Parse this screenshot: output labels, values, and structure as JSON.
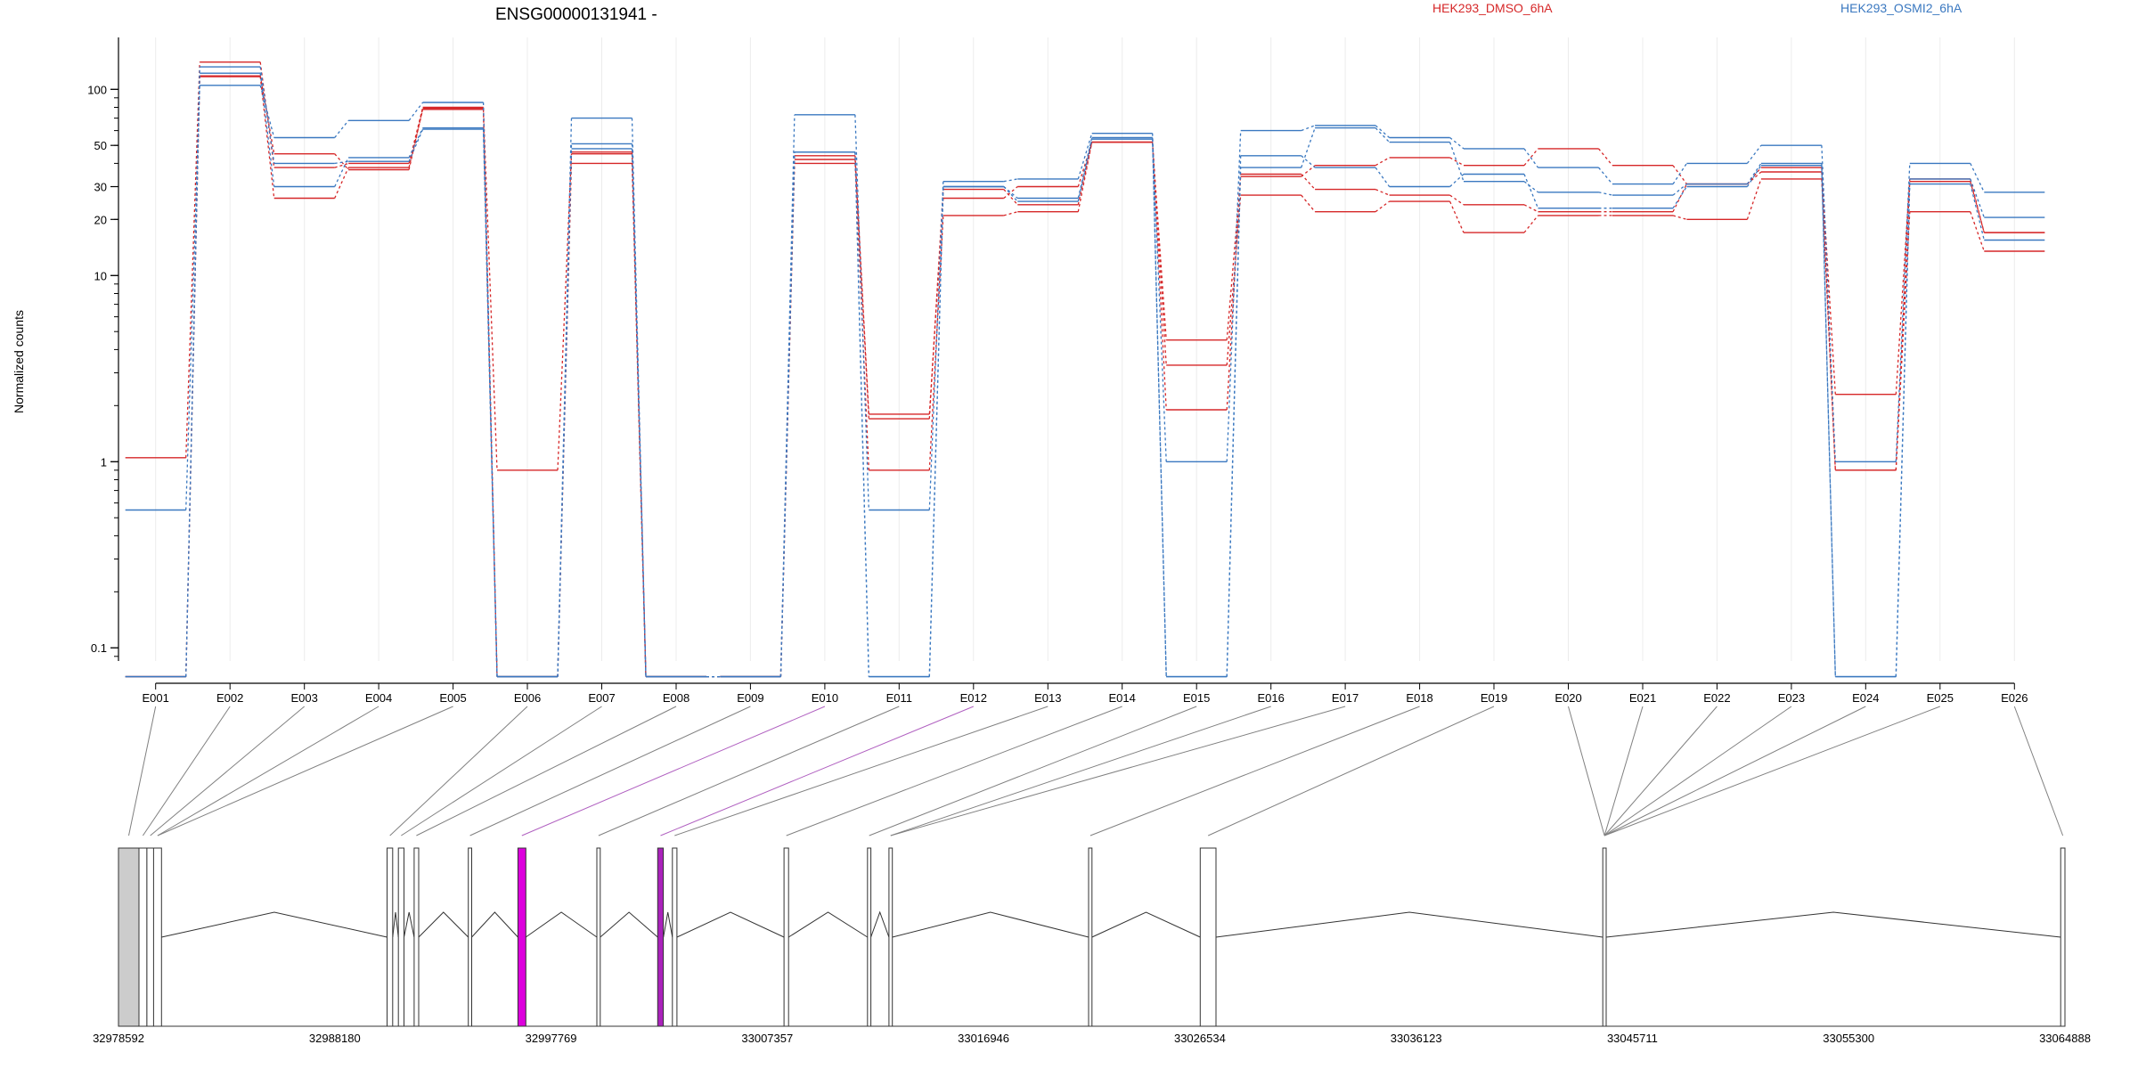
{
  "chart_data": {
    "type": "line",
    "title": "ENSG00000131941 -",
    "ylabel": "Normalized counts",
    "yscale": "log",
    "yticks": [
      "0.1",
      "1",
      "10",
      "20",
      "30",
      "50",
      "100"
    ],
    "ylim": [
      0.085,
      190
    ],
    "grid": "vertical",
    "legend": [
      {
        "label": "HEK293_DMSO_6hA",
        "color": "#d62728"
      },
      {
        "label": "HEK293_OSMI2_6hA",
        "color": "#3a78c0"
      }
    ],
    "categories": [
      "E001",
      "E002",
      "E003",
      "E004",
      "E005",
      "E006",
      "E007",
      "E008",
      "E009",
      "E010",
      "E011",
      "E012",
      "E013",
      "E014",
      "E015",
      "E016",
      "E017",
      "E018",
      "E019",
      "E020",
      "E021",
      "E022",
      "E023",
      "E024",
      "E025",
      "E026"
    ],
    "series": [
      {
        "group": "HEK293_DMSO_6hA",
        "color": "#d62728",
        "values": [
          1.05,
          140,
          38,
          40,
          80,
          0.9,
          45,
          0.07,
          0.07,
          44,
          1.8,
          26,
          30,
          52,
          4.5,
          34,
          39,
          43,
          39,
          48,
          39,
          31,
          38,
          2.3,
          33,
          17
        ]
      },
      {
        "group": "HEK293_DMSO_6hA",
        "color": "#d62728",
        "values": [
          0.07,
          118,
          45,
          37,
          79,
          0.07,
          40,
          0.07,
          0.07,
          40,
          0.9,
          21,
          22,
          52,
          3.3,
          27,
          22,
          25,
          17,
          21,
          21,
          20,
          33,
          0.9,
          22,
          13.5
        ]
      },
      {
        "group": "HEK293_DMSO_6hA",
        "color": "#d62728",
        "values": [
          0.07,
          117,
          26,
          38,
          78,
          0.07,
          46,
          0.07,
          0.07,
          42,
          1.7,
          29,
          24,
          52,
          1.9,
          35,
          29,
          27,
          24,
          22,
          22,
          31,
          36,
          0.9,
          32,
          17
        ]
      },
      {
        "group": "HEK293_OSMI2_6hA",
        "color": "#3a78c0",
        "values": [
          0.55,
          105,
          55,
          68,
          85,
          0.07,
          70,
          0.07,
          0.07,
          73,
          0.55,
          32,
          33,
          58,
          1.0,
          60,
          64,
          55,
          48,
          38,
          31,
          40,
          50,
          1.0,
          40,
          28
        ]
      },
      {
        "group": "HEK293_OSMI2_6hA",
        "color": "#3a78c0",
        "values": [
          0.07,
          122,
          30,
          43,
          62,
          0.07,
          51,
          0.07,
          0.07,
          46,
          0.07,
          30,
          26,
          55,
          0.07,
          38,
          62,
          52,
          32,
          28,
          27,
          31,
          40,
          0.07,
          33,
          20.5
        ]
      },
      {
        "group": "HEK293_OSMI2_6hA",
        "color": "#3a78c0",
        "values": [
          0.07,
          132,
          40,
          41,
          61,
          0.07,
          48,
          0.07,
          0.07,
          46,
          0.07,
          30,
          25,
          54,
          0.07,
          44,
          38,
          30,
          35,
          23,
          23,
          30,
          39,
          0.07,
          31,
          15.5
        ]
      }
    ],
    "genomic_axis": {
      "ticks": [
        "32978592",
        "32988180",
        "32997769",
        "33007357",
        "33016946",
        "33026534",
        "33036123",
        "33045711",
        "33055300",
        "33064888"
      ],
      "start": 32978592,
      "end": 33064888,
      "exons": [
        {
          "start": 32978592,
          "end": 32979500,
          "color": "#cccccc"
        },
        {
          "start": 32979500,
          "end": 32979850,
          "color": "#ffffff"
        },
        {
          "start": 32979850,
          "end": 32980150,
          "color": "#ffffff"
        },
        {
          "start": 32980150,
          "end": 32980500,
          "color": "#ffffff"
        },
        {
          "start": 32990500,
          "end": 32990750,
          "color": "#ffffff"
        },
        {
          "start": 32991000,
          "end": 32991250,
          "color": "#ffffff"
        },
        {
          "start": 32991700,
          "end": 32991900,
          "color": "#ffffff"
        },
        {
          "start": 32994100,
          "end": 32994250,
          "color": "#ffffff"
        },
        {
          "start": 32996300,
          "end": 32996650,
          "color": "#dd00dd"
        },
        {
          "start": 32999800,
          "end": 32999950,
          "color": "#ffffff"
        },
        {
          "start": 33002500,
          "end": 33002750,
          "color": "#aa22bb"
        },
        {
          "start": 33003150,
          "end": 33003350,
          "color": "#ffffff"
        },
        {
          "start": 33008100,
          "end": 33008300,
          "color": "#ffffff"
        },
        {
          "start": 33011800,
          "end": 33011950,
          "color": "#ffffff"
        },
        {
          "start": 33012750,
          "end": 33012900,
          "color": "#ffffff"
        },
        {
          "start": 33021600,
          "end": 33021750,
          "color": "#ffffff"
        },
        {
          "start": 33026550,
          "end": 33027250,
          "color": "#ffffff"
        },
        {
          "start": 33044400,
          "end": 33044550,
          "color": "#ffffff"
        },
        {
          "start": 33064700,
          "end": 33064888,
          "color": "#ffffff"
        }
      ],
      "connector_colors": [
        "#808080",
        "#808080",
        "#808080",
        "#808080",
        "#808080",
        "#808080",
        "#808080",
        "#808080",
        "#808080",
        "#b060c0",
        "#808080",
        "#b060c0",
        "#808080",
        "#808080",
        "#808080",
        "#808080",
        "#808080",
        "#808080",
        "#808080",
        "#808080",
        "#808080",
        "#808080",
        "#808080",
        "#808080",
        "#808080",
        "#808080"
      ]
    }
  }
}
